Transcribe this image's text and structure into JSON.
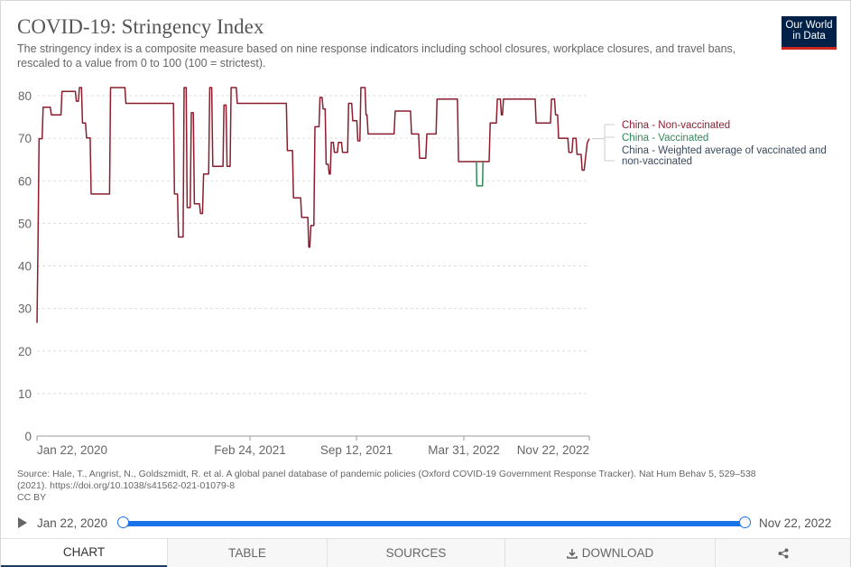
{
  "title": "COVID-19: Stringency Index",
  "subtitle": "The stringency index is a composite measure based on nine response indicators including school closures, workplace closures, and travel bans, rescaled to a value from 0 to 100 (100 = strictest).",
  "logo": {
    "line1": "Our World",
    "line2": "in Data",
    "bg": "#002147",
    "accent": "#ce261e"
  },
  "source": {
    "line1": "Source: Hale, T., Angrist, N., Goldszmidt, R. et al. A global panel database of pandemic policies (Oxford COVID-19 Government Response Tracker). Nat Hum Behav 5, 529–538",
    "line2": "(2021). https://doi.org/10.1038/s41562-021-01079-8",
    "line3": "CC BY"
  },
  "timeline": {
    "start": "Jan 22, 2020",
    "end": "Nov 22, 2022",
    "play_icon": "play-icon",
    "accent": "#1a73e8"
  },
  "tabs": {
    "chart": "CHART",
    "table": "TABLE",
    "sources": "SOURCES",
    "download": "DOWNLOAD",
    "share_icon": "share-icon",
    "download_icon": "download-icon"
  },
  "chart_data": {
    "type": "line",
    "y_ticks": [
      0,
      10,
      20,
      30,
      40,
      50,
      60,
      70,
      80
    ],
    "ylim": [
      0,
      80
    ],
    "grid": "horizontal dashed",
    "x_ticks": [
      "Jan 22, 2020",
      "Feb 24, 2021",
      "Sep 12, 2021",
      "Mar 31, 2022",
      "Nov 22, 2022"
    ],
    "x_range": [
      "2020-01-22",
      "2022-11-22"
    ],
    "legend_position": "right",
    "series": [
      {
        "name": "China - Non-vaccinated",
        "color": "#8b1e2e",
        "points": [
          [
            "2020-01-22",
            26.6
          ],
          [
            "2020-01-24",
            44.9
          ],
          [
            "2020-01-26",
            69.9
          ],
          [
            "2020-02-01",
            69.9
          ],
          [
            "2020-02-03",
            77.3
          ],
          [
            "2020-02-17",
            77.3
          ],
          [
            "2020-02-19",
            75.5
          ],
          [
            "2020-03-09",
            75.5
          ],
          [
            "2020-03-11",
            81.0
          ],
          [
            "2020-04-06",
            81.0
          ],
          [
            "2020-04-08",
            78.7
          ],
          [
            "2020-04-12",
            78.7
          ],
          [
            "2020-04-14",
            81.9
          ],
          [
            "2020-04-18",
            81.9
          ],
          [
            "2020-04-20",
            73.6
          ],
          [
            "2020-04-26",
            73.6
          ],
          [
            "2020-04-28",
            70.1
          ],
          [
            "2020-05-05",
            70.1
          ],
          [
            "2020-05-07",
            56.9
          ],
          [
            "2020-06-12",
            56.9
          ],
          [
            "2020-06-14",
            81.9
          ],
          [
            "2020-07-12",
            81.9
          ],
          [
            "2020-07-14",
            78.2
          ],
          [
            "2020-10-15",
            78.2
          ],
          [
            "2020-10-17",
            56.9
          ],
          [
            "2020-10-23",
            56.9
          ],
          [
            "2020-10-25",
            46.8
          ],
          [
            "2020-11-03",
            46.8
          ],
          [
            "2020-11-05",
            81.9
          ],
          [
            "2020-11-09",
            81.9
          ],
          [
            "2020-11-11",
            53.7
          ],
          [
            "2020-11-17",
            53.7
          ],
          [
            "2020-11-19",
            76.0
          ],
          [
            "2020-11-23",
            76.0
          ],
          [
            "2020-11-25",
            54.6
          ],
          [
            "2020-12-05",
            54.6
          ],
          [
            "2020-12-07",
            52.3
          ],
          [
            "2020-12-11",
            52.3
          ],
          [
            "2020-12-13",
            61.6
          ],
          [
            "2020-12-23",
            61.6
          ],
          [
            "2020-12-25",
            81.9
          ],
          [
            "2020-12-29",
            81.9
          ],
          [
            "2020-12-31",
            63.4
          ],
          [
            "2021-01-20",
            63.4
          ],
          [
            "2021-01-22",
            77.8
          ],
          [
            "2021-01-26",
            77.8
          ],
          [
            "2021-01-28",
            63.4
          ],
          [
            "2021-02-03",
            63.4
          ],
          [
            "2021-02-05",
            81.9
          ],
          [
            "2021-02-15",
            81.9
          ],
          [
            "2021-02-17",
            78.2
          ],
          [
            "2021-05-24",
            78.2
          ],
          [
            "2021-05-26",
            67.1
          ],
          [
            "2021-06-05",
            67.1
          ],
          [
            "2021-06-07",
            56.0
          ],
          [
            "2021-06-21",
            56.0
          ],
          [
            "2021-06-23",
            51.4
          ],
          [
            "2021-07-05",
            51.4
          ],
          [
            "2021-07-07",
            44.4
          ],
          [
            "2021-07-09",
            44.4
          ],
          [
            "2021-07-11",
            49.5
          ],
          [
            "2021-07-17",
            49.5
          ],
          [
            "2021-07-19",
            72.7
          ],
          [
            "2021-07-27",
            72.7
          ],
          [
            "2021-07-29",
            79.6
          ],
          [
            "2021-08-02",
            79.6
          ],
          [
            "2021-08-04",
            76.9
          ],
          [
            "2021-08-08",
            76.9
          ],
          [
            "2021-08-10",
            63.9
          ],
          [
            "2021-08-14",
            63.9
          ],
          [
            "2021-08-16",
            61.6
          ],
          [
            "2021-08-18",
            61.6
          ],
          [
            "2021-08-20",
            69.0
          ],
          [
            "2021-08-24",
            69.0
          ],
          [
            "2021-08-26",
            66.7
          ],
          [
            "2021-09-01",
            66.7
          ],
          [
            "2021-09-03",
            69.0
          ],
          [
            "2021-09-09",
            69.0
          ],
          [
            "2021-09-11",
            66.7
          ],
          [
            "2021-09-21",
            66.7
          ],
          [
            "2021-09-23",
            78.2
          ],
          [
            "2021-09-29",
            78.2
          ],
          [
            "2021-10-01",
            74.1
          ],
          [
            "2021-10-09",
            74.1
          ],
          [
            "2021-10-11",
            69.4
          ],
          [
            "2021-10-15",
            69.4
          ],
          [
            "2021-10-17",
            81.9
          ],
          [
            "2021-10-25",
            81.9
          ],
          [
            "2021-10-27",
            75.5
          ],
          [
            "2021-10-29",
            75.5
          ],
          [
            "2021-10-31",
            71.0
          ],
          [
            "2021-12-21",
            71.0
          ],
          [
            "2021-12-23",
            76.4
          ],
          [
            "2022-01-22",
            76.4
          ],
          [
            "2022-01-24",
            71.0
          ],
          [
            "2022-02-07",
            71.0
          ],
          [
            "2022-02-09",
            65.3
          ],
          [
            "2022-02-21",
            65.3
          ],
          [
            "2022-02-23",
            71.0
          ],
          [
            "2022-03-13",
            71.0
          ],
          [
            "2022-03-15",
            79.2
          ],
          [
            "2022-04-24",
            79.2
          ],
          [
            "2022-04-26",
            64.5
          ],
          [
            "2022-06-25",
            64.5
          ],
          [
            "2022-06-27",
            73.6
          ],
          [
            "2022-07-09",
            73.6
          ],
          [
            "2022-07-11",
            79.2
          ],
          [
            "2022-07-17",
            79.2
          ],
          [
            "2022-07-19",
            75.5
          ],
          [
            "2022-07-21",
            75.5
          ],
          [
            "2022-07-23",
            79.2
          ],
          [
            "2022-09-23",
            79.2
          ],
          [
            "2022-09-25",
            73.6
          ],
          [
            "2022-10-23",
            73.6
          ],
          [
            "2022-10-25",
            79.2
          ],
          [
            "2022-10-31",
            79.2
          ],
          [
            "2022-11-02",
            75.5
          ],
          [
            "2022-11-06",
            75.5
          ],
          [
            "2022-11-08",
            70.0
          ],
          [
            "2022-11-26",
            70.0
          ],
          [
            "2022-11-28",
            66.7
          ],
          [
            "2022-12-04",
            66.7
          ],
          [
            "2022-12-06",
            70.0
          ],
          [
            "2022-12-12",
            70.0
          ],
          [
            "2022-12-14",
            66.2
          ],
          [
            "2022-12-22",
            66.2
          ],
          [
            "2022-12-24",
            62.5
          ],
          [
            "2022-12-28",
            62.5
          ],
          [
            "2023-01-03",
            68.9
          ],
          [
            "2023-01-07",
            69.9
          ]
        ]
      },
      {
        "name": "China - Vaccinated",
        "color": "#2e8b57",
        "points": [
          [
            "2022-05-31",
            64.5
          ],
          [
            "2022-06-01",
            58.8
          ],
          [
            "2022-06-12",
            58.8
          ],
          [
            "2022-06-13",
            64.5
          ]
        ]
      },
      {
        "name": "China - Weighted average of vaccinated and non-vaccinated",
        "color": "#3a4a5c",
        "points": []
      }
    ]
  }
}
